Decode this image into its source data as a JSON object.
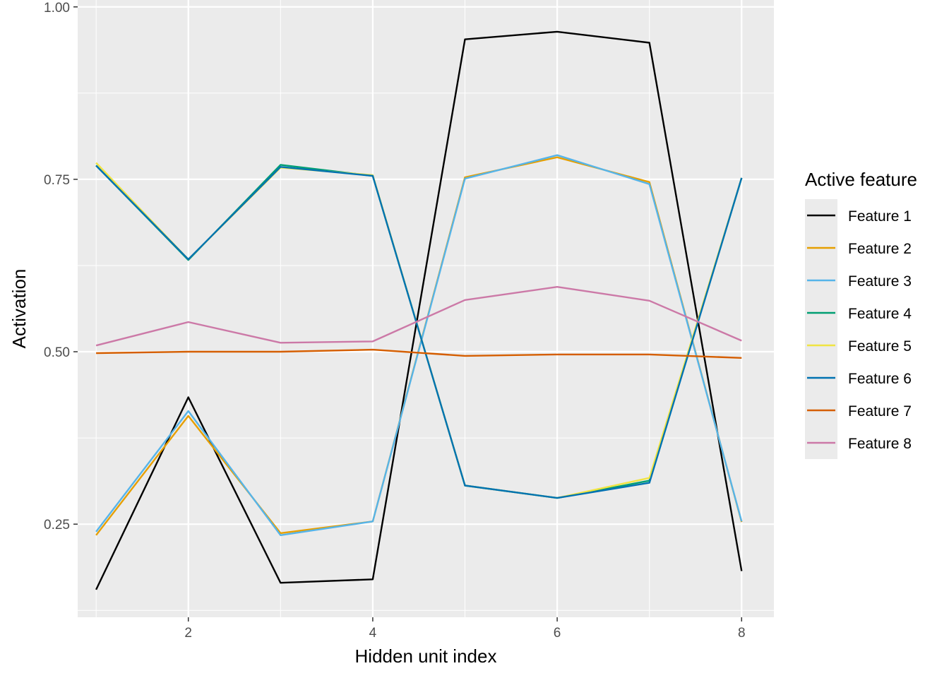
{
  "chart_data": {
    "type": "line",
    "title": "",
    "xlabel": "Hidden unit index",
    "ylabel": "Activation",
    "xlim": [
      0.8,
      8.35
    ],
    "ylim": [
      0.115,
      1.01
    ],
    "x_ticks": [
      2,
      4,
      6,
      8
    ],
    "x_tick_labels": [
      "2",
      "4",
      "6",
      "8"
    ],
    "y_ticks": [
      0.25,
      0.5,
      0.75,
      1.0
    ],
    "y_tick_labels": [
      "0.25",
      "0.50",
      "0.75",
      "1.00"
    ],
    "grid": true,
    "legend_title": "Active feature",
    "legend_position": "right",
    "x": [
      1,
      2,
      3,
      4,
      5,
      6,
      7,
      8
    ],
    "series": [
      {
        "name": "Feature 1",
        "color": "#000000",
        "values": [
          0.155,
          0.434,
          0.165,
          0.17,
          0.953,
          0.964,
          0.948,
          0.182
        ]
      },
      {
        "name": "Feature 2",
        "color": "#E69F00",
        "values": [
          0.234,
          0.407,
          0.237,
          0.254,
          0.753,
          0.782,
          0.746,
          0.253
        ]
      },
      {
        "name": "Feature 3",
        "color": "#56B4E9",
        "values": [
          0.239,
          0.414,
          0.234,
          0.254,
          0.751,
          0.785,
          0.743,
          0.254
        ]
      },
      {
        "name": "Feature 4",
        "color": "#009E73",
        "values": [
          0.77,
          0.633,
          0.771,
          0.755,
          0.306,
          0.288,
          0.313,
          0.752
        ]
      },
      {
        "name": "Feature 5",
        "color": "#F0E442",
        "values": [
          0.774,
          0.634,
          0.767,
          0.756,
          0.306,
          0.288,
          0.317,
          0.752
        ]
      },
      {
        "name": "Feature 6",
        "color": "#0072B2",
        "values": [
          0.77,
          0.634,
          0.768,
          0.755,
          0.306,
          0.288,
          0.31,
          0.752
        ]
      },
      {
        "name": "Feature 7",
        "color": "#D55E00",
        "values": [
          0.498,
          0.5,
          0.5,
          0.503,
          0.494,
          0.496,
          0.496,
          0.491
        ]
      },
      {
        "name": "Feature 8",
        "color": "#CC79A7",
        "values": [
          0.509,
          0.543,
          0.513,
          0.515,
          0.575,
          0.594,
          0.574,
          0.516
        ]
      }
    ]
  }
}
